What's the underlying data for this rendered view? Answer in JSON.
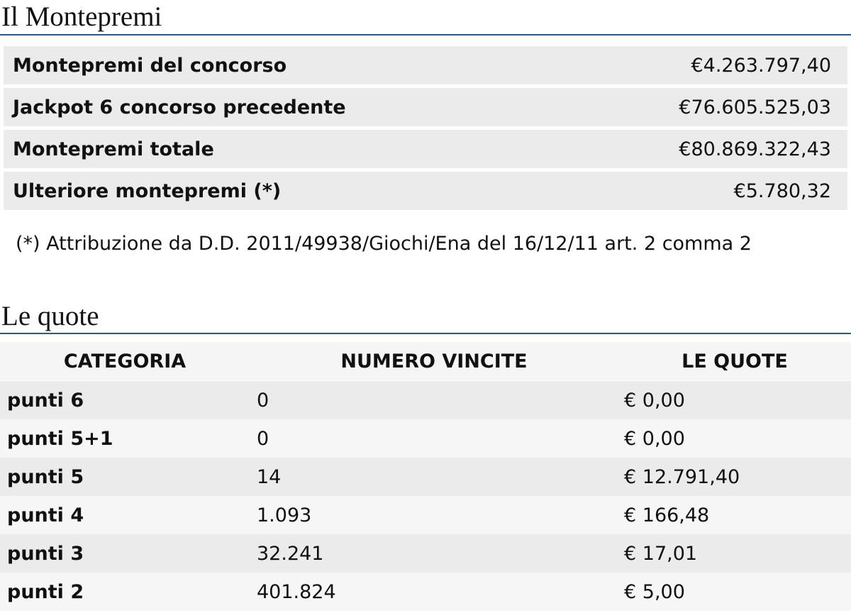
{
  "montepremi": {
    "title": "Il Montepremi",
    "rows": [
      [
        "Montepremi del concorso",
        "€4.263.797,40"
      ],
      [
        "Jackpot 6 concorso precedente",
        "€76.605.525,03"
      ],
      [
        "Montepremi totale",
        "€80.869.322,43"
      ],
      [
        "Ulteriore montepremi (*)",
        "€5.780,32"
      ]
    ],
    "note": "(*) Attribuzione da D.D. 2011/49938/Giochi/Ena del 16/12/11 art. 2 comma 2"
  },
  "quote": {
    "title": "Le quote",
    "header": [
      "CATEGORIA",
      "NUMERO VINCITE",
      "LE QUOTE"
    ],
    "rows": [
      [
        "punti 6",
        "0",
        "€ 0,00"
      ],
      [
        "punti 5+1",
        "0",
        "€ 0,00"
      ],
      [
        "punti 5",
        "14",
        "€ 12.791,40"
      ],
      [
        "punti 4",
        "1.093",
        "€ 166,48"
      ],
      [
        "punti 3",
        "32.241",
        "€ 17,01"
      ],
      [
        "punti 2",
        "401.824",
        "€ 5,00"
      ]
    ]
  }
}
